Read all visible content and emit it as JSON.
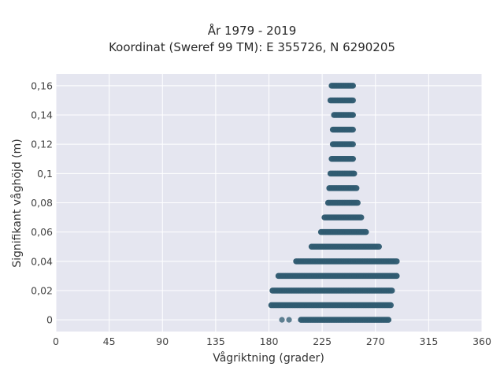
{
  "chart_data": {
    "type": "scatter",
    "title": "År 1979 - 2019",
    "subtitle": "Koordinat (Sweref 99 TM): E 355726, N 6290205",
    "xlabel": "Vågriktning (grader)",
    "ylabel": "Signifikant våghöjd (m)",
    "xlim": [
      0,
      360
    ],
    "ylim": [
      -0.008,
      0.168
    ],
    "x_ticks": [
      0,
      45,
      90,
      135,
      180,
      225,
      270,
      315,
      360
    ],
    "y_ticks": [
      0,
      0.02,
      0.04,
      0.06,
      0.08,
      0.1,
      0.12,
      0.14,
      0.16
    ],
    "y_tick_labels": [
      "0",
      "0,02",
      "0,04",
      "0,06",
      "0,08",
      "0,1",
      "0,12",
      "0,14",
      "0,16"
    ],
    "grid": true,
    "marker_color": "#2e5a70",
    "bands": [
      {
        "y": 0.0,
        "x_min": 207,
        "x_max": 281,
        "isolated_x": [
          191,
          197
        ]
      },
      {
        "y": 0.01,
        "x_min": 182,
        "x_max": 283
      },
      {
        "y": 0.02,
        "x_min": 183,
        "x_max": 284
      },
      {
        "y": 0.03,
        "x_min": 188,
        "x_max": 288
      },
      {
        "y": 0.04,
        "x_min": 203,
        "x_max": 288
      },
      {
        "y": 0.05,
        "x_min": 216,
        "x_max": 273
      },
      {
        "y": 0.06,
        "x_min": 224,
        "x_max": 262
      },
      {
        "y": 0.07,
        "x_min": 227,
        "x_max": 258
      },
      {
        "y": 0.08,
        "x_min": 230,
        "x_max": 255
      },
      {
        "y": 0.09,
        "x_min": 231,
        "x_max": 254
      },
      {
        "y": 0.1,
        "x_min": 232,
        "x_max": 252
      },
      {
        "y": 0.11,
        "x_min": 233,
        "x_max": 251
      },
      {
        "y": 0.12,
        "x_min": 234,
        "x_max": 251
      },
      {
        "y": 0.13,
        "x_min": 234,
        "x_max": 251
      },
      {
        "y": 0.14,
        "x_min": 235,
        "x_max": 251
      },
      {
        "y": 0.15,
        "x_min": 232,
        "x_max": 251
      },
      {
        "y": 0.16,
        "x_min": 233,
        "x_max": 251
      }
    ]
  }
}
